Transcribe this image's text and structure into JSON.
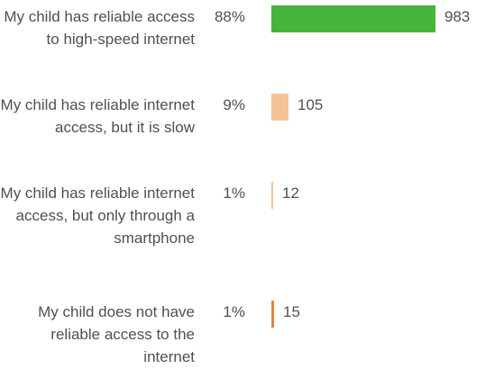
{
  "chart_data": {
    "type": "bar",
    "orientation": "horizontal",
    "categories": [
      "My child has reliable access to high-speed internet",
      "My child has reliable internet access, but it is slow",
      "My child has reliable internet access, but only through a smartphone",
      "My child does not have reliable access to the internet"
    ],
    "percent_labels": [
      "88%",
      "9%",
      "1%",
      "1%"
    ],
    "values": [
      983,
      105,
      12,
      15
    ],
    "colors": [
      "#46b33a",
      "#f4c396",
      "#f4c396",
      "#e8823a"
    ],
    "grid": false,
    "legend": "none"
  }
}
